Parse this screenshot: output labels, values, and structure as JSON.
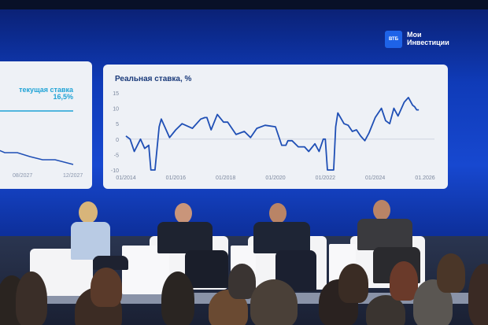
{
  "brand": {
    "logo_text": "ВТБ",
    "name": "Мои Инвестиции"
  },
  "left_panel": {
    "label": "текущая ставка 16,5%",
    "x_ticks": [
      "08/2027",
      "12/2027"
    ]
  },
  "chart_data": {
    "type": "line",
    "title": "Реальная ставка, %",
    "xlabel": "",
    "ylabel": "",
    "ylim": [
      -10,
      15
    ],
    "y_ticks": [
      "15",
      "10",
      "5",
      "0",
      "-5",
      "-10"
    ],
    "x_ticks": [
      "01/2014",
      "01/2016",
      "01/2018",
      "01/2020",
      "01/2022",
      "01/2024",
      "01.2026"
    ],
    "x_range": [
      "2014-01",
      "2026-01"
    ],
    "grid": false,
    "color": "#1f4fb5",
    "points": [
      [
        "2014-01",
        1
      ],
      [
        "2014-03",
        0
      ],
      [
        "2014-05",
        -4
      ],
      [
        "2014-08",
        0
      ],
      [
        "2014-10",
        -3
      ],
      [
        "2014-12",
        -2
      ],
      [
        "2015-01",
        -10
      ],
      [
        "2015-03",
        -10
      ],
      [
        "2015-05",
        4
      ],
      [
        "2015-06",
        6.5
      ],
      [
        "2015-10",
        0.5
      ],
      [
        "2016-01",
        3
      ],
      [
        "2016-04",
        5
      ],
      [
        "2016-09",
        3.5
      ],
      [
        "2017-01",
        6.5
      ],
      [
        "2017-03",
        7
      ],
      [
        "2017-04",
        7
      ],
      [
        "2017-06",
        3
      ],
      [
        "2017-09",
        8
      ],
      [
        "2017-12",
        5.5
      ],
      [
        "2018-02",
        5.5
      ],
      [
        "2018-06",
        1.5
      ],
      [
        "2018-10",
        2.5
      ],
      [
        "2019-01",
        0.5
      ],
      [
        "2019-04",
        3.5
      ],
      [
        "2019-08",
        4.5
      ],
      [
        "2020-01",
        4
      ],
      [
        "2020-04",
        -2
      ],
      [
        "2020-06",
        -2
      ],
      [
        "2020-07",
        -0.5
      ],
      [
        "2020-09",
        -0.5
      ],
      [
        "2020-12",
        -2.5
      ],
      [
        "2021-03",
        -2.5
      ],
      [
        "2021-05",
        -4
      ],
      [
        "2021-08",
        -1.5
      ],
      [
        "2021-10",
        -4
      ],
      [
        "2021-12",
        0
      ],
      [
        "2022-01",
        0
      ],
      [
        "2022-02",
        -10
      ],
      [
        "2022-05",
        -10
      ],
      [
        "2022-06",
        4
      ],
      [
        "2022-07",
        8.5
      ],
      [
        "2022-10",
        5
      ],
      [
        "2022-12",
        4.5
      ],
      [
        "2023-02",
        2.5
      ],
      [
        "2023-04",
        3
      ],
      [
        "2023-06",
        1
      ],
      [
        "2023-08",
        -0.5
      ],
      [
        "2023-10",
        2
      ],
      [
        "2024-01",
        7
      ],
      [
        "2024-04",
        10
      ],
      [
        "2024-06",
        6
      ],
      [
        "2024-08",
        5
      ],
      [
        "2024-10",
        10
      ],
      [
        "2024-12",
        7.5
      ],
      [
        "2025-03",
        12
      ],
      [
        "2025-05",
        13.5
      ],
      [
        "2025-07",
        11
      ],
      [
        "2025-08",
        10.5
      ],
      [
        "2025-09",
        9.5
      ],
      [
        "2025-10",
        9.5
      ]
    ]
  }
}
